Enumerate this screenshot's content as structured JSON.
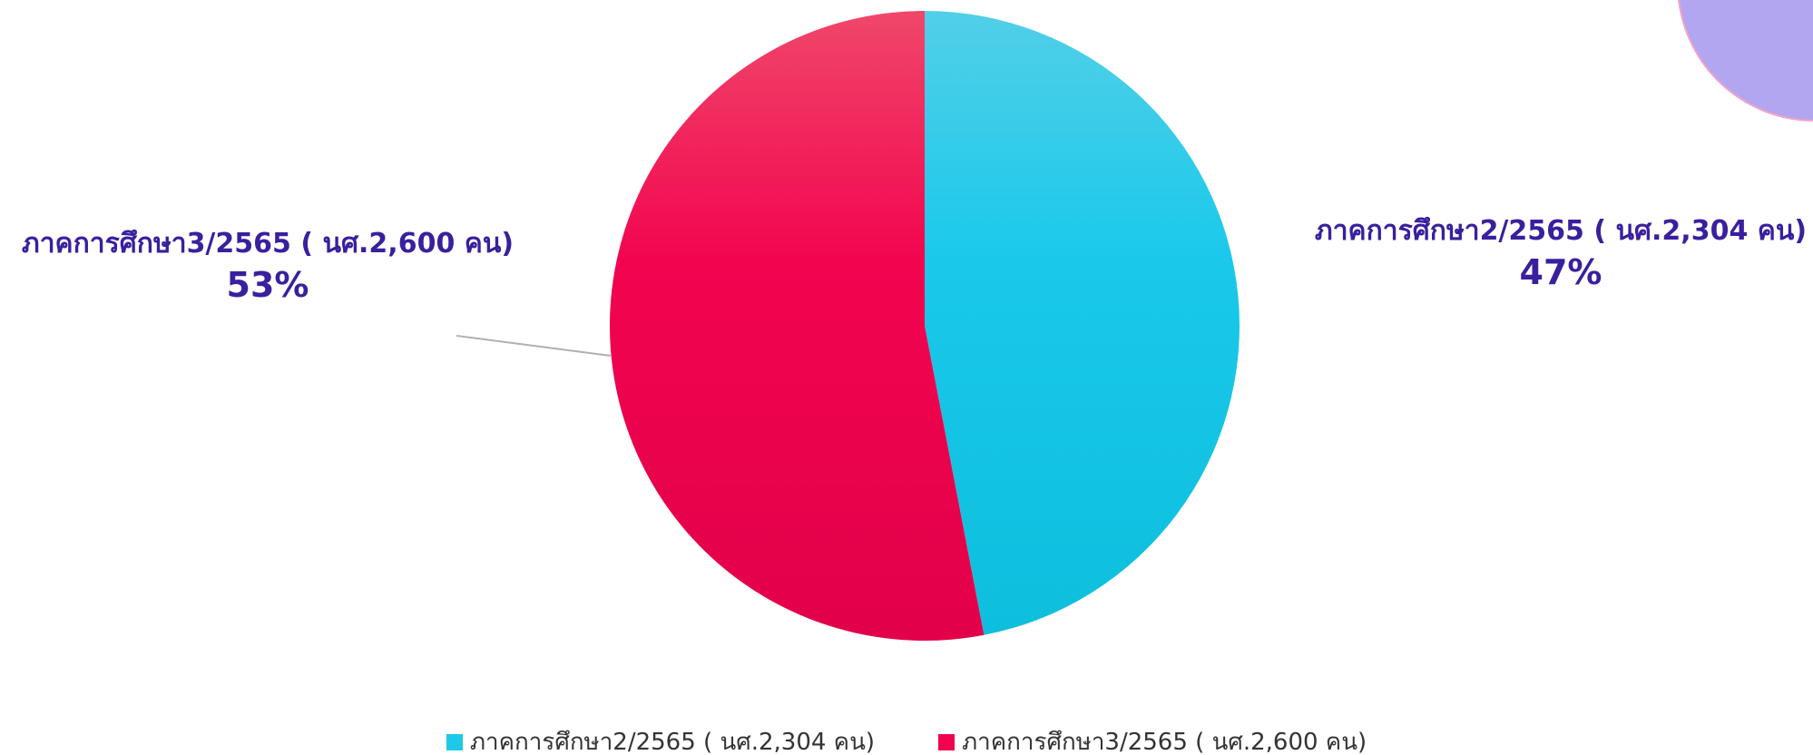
{
  "chart_data": {
    "type": "pie",
    "categories": [
      "ภาคการศึกษา2/2565 ( นศ.2,304 คน)",
      "ภาคการศึกษา3/2565  ( นศ.2,600 คน)"
    ],
    "values": [
      2304,
      2600
    ],
    "data_labels": [
      "47%",
      "53%"
    ],
    "colors": [
      "#1ec9e8",
      "#f0044f"
    ],
    "legend_position": "bottom"
  },
  "decor": {
    "circle_fill": "#b3a6f0"
  }
}
